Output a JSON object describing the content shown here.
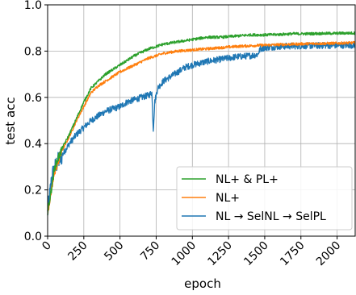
{
  "chart_data": {
    "type": "line",
    "title": "",
    "xlabel": "epoch",
    "ylabel": "test acc",
    "xlim": [
      0,
      2125
    ],
    "ylim": [
      0,
      1.0
    ],
    "xticks": [
      0,
      250,
      500,
      750,
      1000,
      1250,
      1500,
      1750,
      2000
    ],
    "xtick_labels": [
      "0",
      "250",
      "500",
      "750",
      "1000",
      "1250",
      "1500",
      "1750",
      "2000"
    ],
    "yticks": [
      0.0,
      0.2,
      0.4,
      0.6,
      0.8,
      1.0
    ],
    "ytick_labels": [
      "0.0",
      "0.2",
      "0.4",
      "0.6",
      "0.8",
      "1.0"
    ],
    "grid": true,
    "legend_position": "lower-right",
    "series": [
      {
        "name": "NL+ & PL+",
        "color": "#2ca02c",
        "x": [
          0,
          50,
          100,
          150,
          200,
          250,
          300,
          350,
          400,
          450,
          500,
          600,
          700,
          800,
          900,
          1000,
          1100,
          1200,
          1300,
          1400,
          1500,
          1600,
          1700,
          1800,
          1900,
          2000,
          2125
        ],
        "y": [
          0.1,
          0.3,
          0.38,
          0.44,
          0.51,
          0.58,
          0.64,
          0.67,
          0.7,
          0.72,
          0.74,
          0.78,
          0.81,
          0.83,
          0.84,
          0.85,
          0.86,
          0.86,
          0.865,
          0.87,
          0.87,
          0.872,
          0.875,
          0.875,
          0.876,
          0.877,
          0.878
        ]
      },
      {
        "name": "NL+",
        "color": "#ff7f0e",
        "x": [
          0,
          50,
          100,
          150,
          200,
          250,
          300,
          350,
          400,
          450,
          500,
          600,
          700,
          800,
          900,
          1000,
          1100,
          1200,
          1300,
          1400,
          1500,
          1600,
          1700,
          1800,
          1900,
          2000,
          2125
        ],
        "y": [
          0.1,
          0.28,
          0.37,
          0.43,
          0.5,
          0.56,
          0.62,
          0.65,
          0.67,
          0.69,
          0.71,
          0.74,
          0.77,
          0.79,
          0.8,
          0.805,
          0.81,
          0.815,
          0.82,
          0.823,
          0.826,
          0.828,
          0.83,
          0.832,
          0.833,
          0.834,
          0.836
        ]
      },
      {
        "name": "NL → SelNL → SelPL",
        "color": "#1f77b4",
        "x": [
          0,
          30,
          60,
          100,
          150,
          200,
          250,
          300,
          350,
          400,
          450,
          500,
          550,
          600,
          650,
          700,
          720,
          730,
          740,
          760,
          800,
          850,
          900,
          950,
          1000,
          1100,
          1200,
          1300,
          1400,
          1450,
          1470,
          1500,
          1600,
          1700,
          1800,
          1900,
          2000,
          2125
        ],
        "y": [
          0.1,
          0.26,
          0.31,
          0.35,
          0.4,
          0.44,
          0.47,
          0.5,
          0.52,
          0.54,
          0.55,
          0.56,
          0.58,
          0.59,
          0.6,
          0.61,
          0.62,
          0.46,
          0.58,
          0.64,
          0.67,
          0.69,
          0.71,
          0.73,
          0.74,
          0.755,
          0.765,
          0.775,
          0.78,
          0.785,
          0.81,
          0.815,
          0.82,
          0.822,
          0.823,
          0.824,
          0.825,
          0.826
        ]
      }
    ]
  }
}
